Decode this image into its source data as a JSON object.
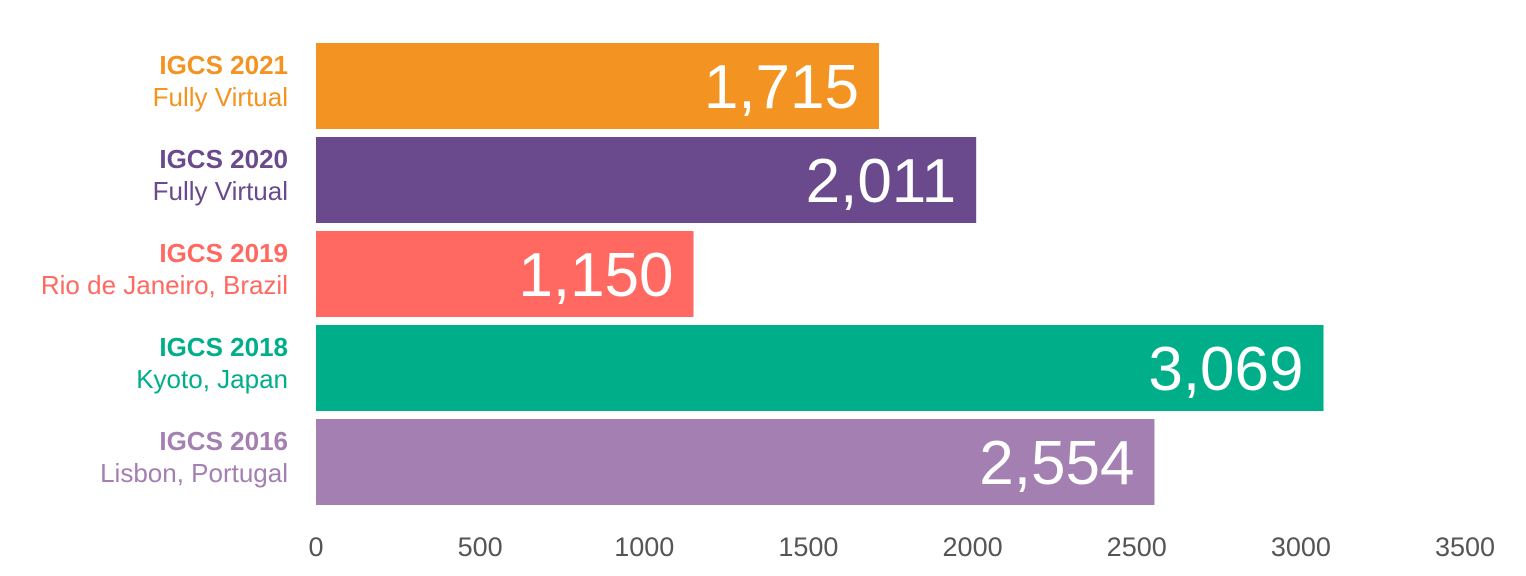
{
  "chart_data": {
    "type": "bar",
    "orientation": "horizontal",
    "categories": [
      {
        "title": "IGCS 2021",
        "subtitle": "Fully Virtual",
        "color": "#F39322"
      },
      {
        "title": "IGCS 2020",
        "subtitle": "Fully Virtual",
        "color": "#6A4A8C"
      },
      {
        "title": "IGCS 2019",
        "subtitle": "Rio de Janeiro, Brazil",
        "color": "#FF6961"
      },
      {
        "title": "IGCS 2018",
        "subtitle": "Kyoto, Japan",
        "color": "#00AF8A"
      },
      {
        "title": "IGCS 2016",
        "subtitle": "Lisbon, Portugal",
        "color": "#A47FB2"
      }
    ],
    "values": [
      1715,
      2011,
      1150,
      3069,
      2554
    ],
    "value_labels": [
      "1,715",
      "2,011",
      "1,150",
      "3,069",
      "2,554"
    ],
    "xlim": [
      0,
      3500
    ],
    "xticks": [
      0,
      500,
      1000,
      1500,
      2000,
      2500,
      3000,
      3500
    ],
    "xtick_labels": [
      "0",
      "500",
      "1000",
      "1500",
      "2000",
      "2500",
      "3000",
      "3500"
    ],
    "grid": false,
    "legend": "none"
  }
}
